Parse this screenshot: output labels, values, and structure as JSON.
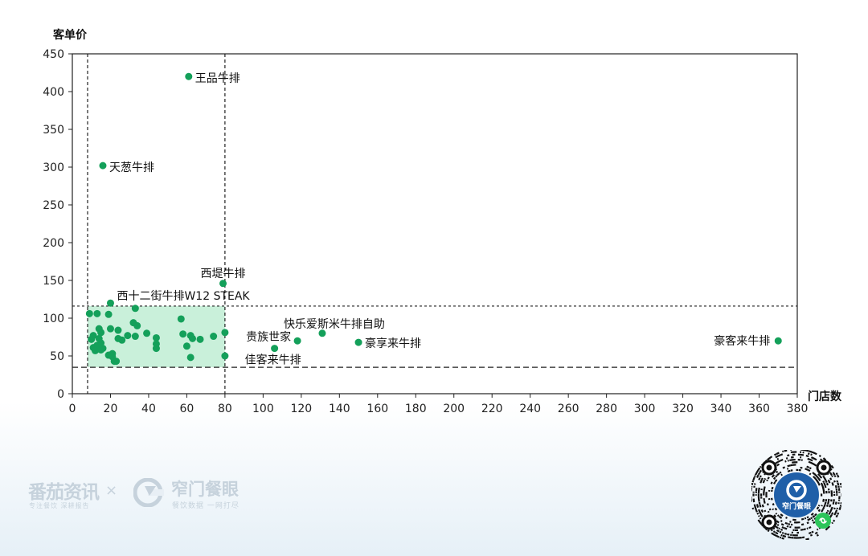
{
  "chart_data": {
    "type": "scatter",
    "xlabel": "门店数",
    "ylabel": "客单价",
    "xlim": [
      0,
      380
    ],
    "ylim": [
      0,
      450
    ],
    "xticks": [
      0,
      20,
      40,
      60,
      80,
      100,
      120,
      140,
      160,
      180,
      200,
      220,
      240,
      260,
      280,
      300,
      320,
      340,
      360,
      380
    ],
    "yticks": [
      0,
      50,
      100,
      150,
      200,
      250,
      300,
      350,
      400,
      450
    ],
    "point_color": "#14a05a",
    "highlight_region": {
      "x": [
        8,
        80
      ],
      "y": [
        35,
        116
      ],
      "color": "#c9f0da"
    },
    "reference_lines": {
      "vertical": [
        8,
        80
      ],
      "horizontal": [
        116,
        35
      ]
    },
    "points": [
      {
        "x": 61,
        "y": 420,
        "label": "王品牛排"
      },
      {
        "x": 16,
        "y": 302,
        "label": "天葱牛排"
      },
      {
        "x": 79,
        "y": 146,
        "label": "西堤牛排"
      },
      {
        "x": 20,
        "y": 120,
        "label": "西十二街牛排W12 STEAK"
      },
      {
        "x": 131,
        "y": 80,
        "label": "快乐爱斯米牛排自助"
      },
      {
        "x": 118,
        "y": 70,
        "label": "贵族世家"
      },
      {
        "x": 150,
        "y": 68,
        "label": "豪享来牛排"
      },
      {
        "x": 106,
        "y": 60,
        "label": "佳客来牛排"
      },
      {
        "x": 370,
        "y": 70,
        "label": "豪客来牛排"
      },
      {
        "x": 9,
        "y": 106
      },
      {
        "x": 13,
        "y": 106
      },
      {
        "x": 19,
        "y": 105
      },
      {
        "x": 33,
        "y": 113
      },
      {
        "x": 57,
        "y": 99
      },
      {
        "x": 32,
        "y": 94
      },
      {
        "x": 20,
        "y": 86
      },
      {
        "x": 14,
        "y": 86
      },
      {
        "x": 24,
        "y": 84
      },
      {
        "x": 34,
        "y": 90
      },
      {
        "x": 39,
        "y": 80
      },
      {
        "x": 33,
        "y": 76
      },
      {
        "x": 29,
        "y": 77
      },
      {
        "x": 15,
        "y": 81
      },
      {
        "x": 11,
        "y": 77
      },
      {
        "x": 10,
        "y": 72
      },
      {
        "x": 14,
        "y": 73
      },
      {
        "x": 24,
        "y": 73
      },
      {
        "x": 26,
        "y": 71
      },
      {
        "x": 44,
        "y": 74
      },
      {
        "x": 44,
        "y": 66
      },
      {
        "x": 44,
        "y": 60
      },
      {
        "x": 58,
        "y": 79
      },
      {
        "x": 62,
        "y": 77
      },
      {
        "x": 63,
        "y": 73
      },
      {
        "x": 67,
        "y": 72
      },
      {
        "x": 74,
        "y": 76
      },
      {
        "x": 80,
        "y": 81
      },
      {
        "x": 60,
        "y": 63
      },
      {
        "x": 62,
        "y": 48
      },
      {
        "x": 80,
        "y": 50
      },
      {
        "x": 13,
        "y": 64
      },
      {
        "x": 11,
        "y": 61
      },
      {
        "x": 16,
        "y": 60
      },
      {
        "x": 12,
        "y": 57
      },
      {
        "x": 15,
        "y": 58
      },
      {
        "x": 19,
        "y": 51
      },
      {
        "x": 21,
        "y": 53
      },
      {
        "x": 21,
        "y": 49
      },
      {
        "x": 22,
        "y": 43
      },
      {
        "x": 23,
        "y": 43
      },
      {
        "x": 15,
        "y": 67
      }
    ]
  },
  "footer": {
    "brand1": "番茄资讯",
    "brand1_sub": "专注餐饮  深耕报告",
    "times": "×",
    "brand2": "窄门餐眼",
    "brand2_sub": "餐饮数据  一网打尽",
    "qr_label": "窄门餐眼"
  }
}
